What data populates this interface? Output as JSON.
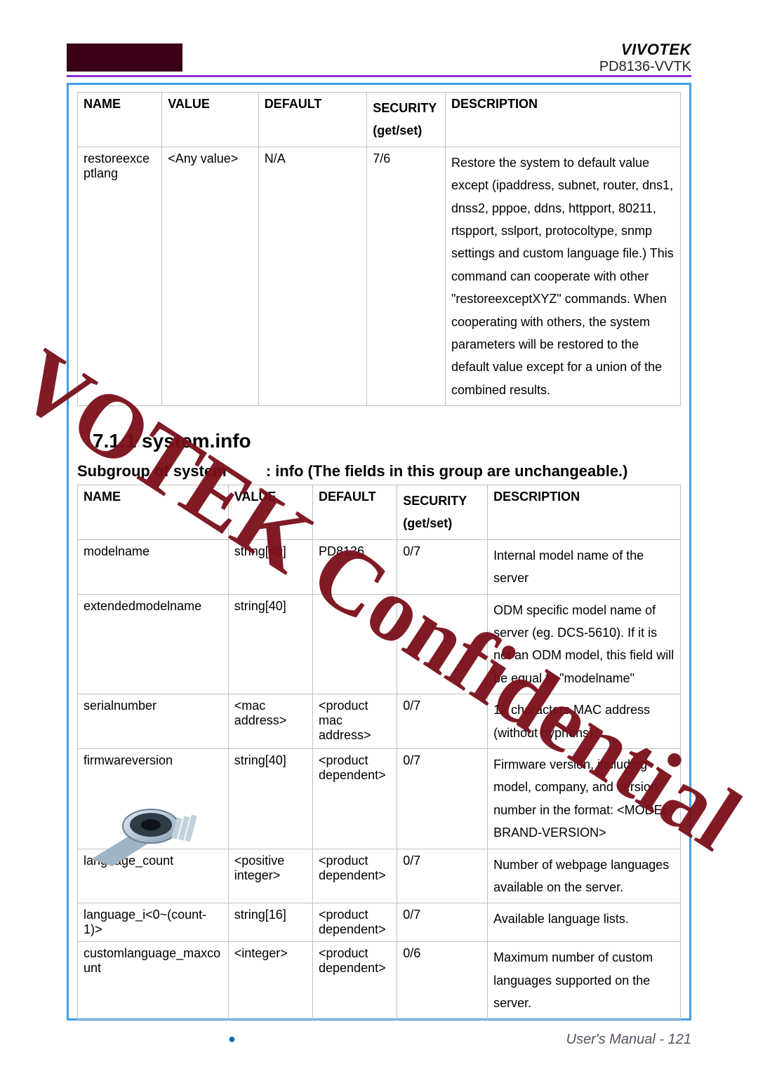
{
  "header": {
    "brand": "VIVOTEK",
    "model": "PD8136-VVTK",
    "accent_color": "#3a0018",
    "rule_color": "#8a2be2"
  },
  "watermark": "VOTEK Confidential",
  "table1": {
    "columns": [
      "NAME",
      "VALUE",
      "DEFAULT",
      "SECURITY (get/set)",
      "DESCRIPTION"
    ],
    "col_widths": [
      "14%",
      "16%",
      "18%",
      "13%",
      "39%"
    ],
    "rows": [
      {
        "cells": [
          "restoreexceptlang",
          "<Any value>",
          "N/A",
          "7/6",
          "Restore the system to default value except (ipaddress, subnet, router, dns1, dnss2, pppoe, ddns, httpport, 80211, rtspport, sslport, protocoltype, snmp settings and custom language file.) This command can cooperate with other \"restoreexceptXYZ\" commands. When cooperating with others, the system parameters will be restored to the default value except for a union of the combined results."
        ]
      }
    ]
  },
  "section": {
    "title": "7.1.1 system.info"
  },
  "subsection": {
    "label_group": "Subgroup of system",
    "label_name": ": info (The fields in this group are unchangeable.)"
  },
  "table2": {
    "columns": [
      "NAME",
      "VALUE",
      "DEFAULT",
      "SECURITY (get/set)",
      "DESCRIPTION"
    ],
    "col_widths": [
      "25%",
      "14%",
      "14%",
      "15%",
      "32%"
    ],
    "rows": [
      {
        "cells": [
          "modelname",
          "string[40]",
          "PD8136",
          "0/7",
          "Internal model name of the server "
        ]
      },
      {
        "cells": [
          "extendedmodelname",
          "string[40]",
          "",
          "",
          "ODM specific model name of server (eg. DCS-5610). If it is not an ODM model, this field will be equal to \"modelname\""
        ]
      },
      {
        "cells": [
          "serialnumber",
          "<mac address>",
          "<product mac address>",
          "0/7",
          "12 characters MAC address (without hyphens)."
        ]
      },
      {
        "cells": [
          "firmwareversion",
          "string[40]",
          "<product dependent>",
          "0/7",
          "Firmware version, including model, company, and version number in the format: <MODEL-BRAND-VERSION>"
        ]
      },
      {
        "cells": [
          "language_count",
          "<positive integer>",
          "<product dependent>",
          "0/7",
          "Number of webpage languages available on the server."
        ]
      },
      {
        "cells": [
          "language_i<0~(count-1)>",
          "string[16]",
          "<product dependent>",
          "0/7",
          "Available language lists."
        ]
      },
      {
        "cells": [
          "customlanguage_maxcount",
          "<integer>",
          "<product dependent>",
          "0/6",
          "Maximum number of custom languages supported on the server."
        ]
      }
    ]
  },
  "footer": {
    "left_symbol": "●",
    "right": "User's Manual - 121"
  },
  "colors": {
    "border": "#3fa0e6",
    "cell_border": "#bfbfbf",
    "wm": "#7a0f1b",
    "footer_right": "#5d5060",
    "footer_left": "#0a6bb5"
  }
}
